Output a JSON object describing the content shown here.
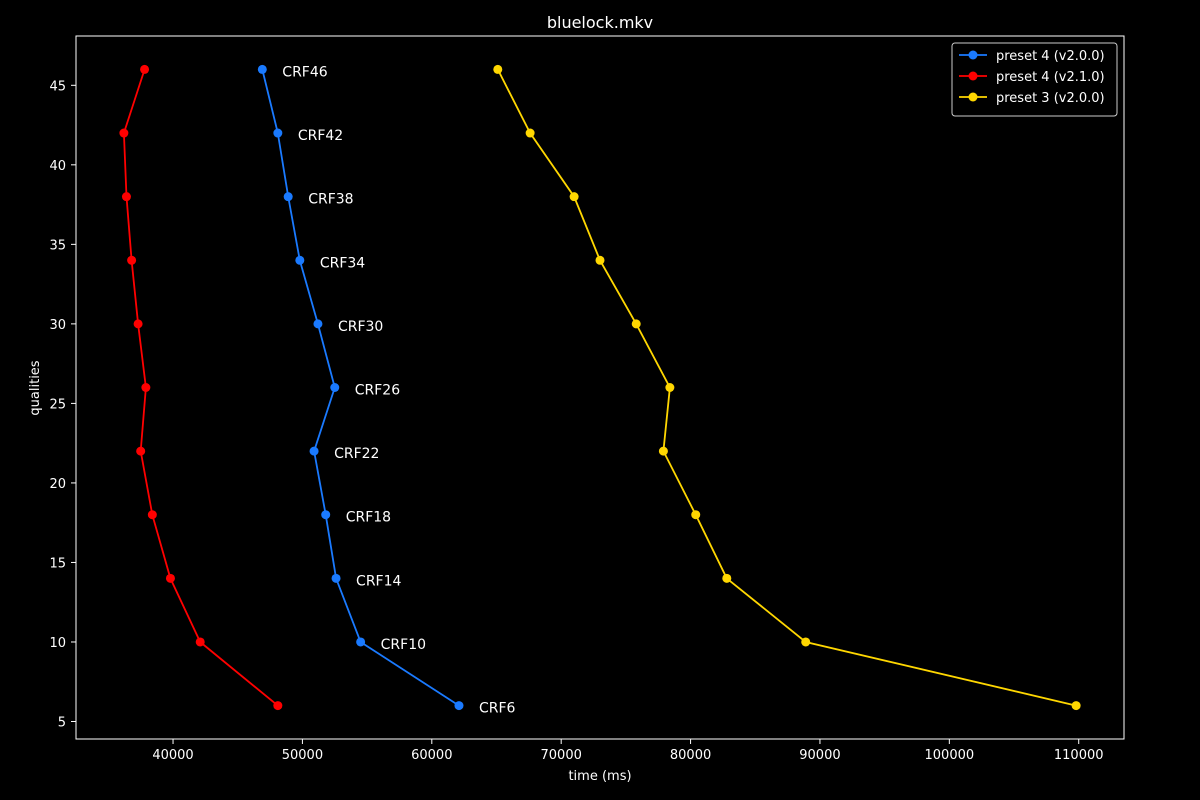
{
  "chart_data": {
    "type": "line",
    "title": "bluelock.mkv",
    "xlabel": "time (ms)",
    "ylabel": "qualities",
    "xlim": [
      32500,
      113500
    ],
    "ylim": [
      3.9,
      48.1
    ],
    "xticks": [
      40000,
      50000,
      60000,
      70000,
      80000,
      90000,
      100000,
      110000
    ],
    "yticks": [
      5,
      10,
      15,
      20,
      25,
      30,
      35,
      40,
      45
    ],
    "grid": false,
    "legend_position": "top-right",
    "series": [
      {
        "name": "preset 4 (v2.0.0)",
        "color": "#1a7aff",
        "points": [
          {
            "x": 46900,
            "y": 46
          },
          {
            "x": 48100,
            "y": 42
          },
          {
            "x": 48900,
            "y": 38
          },
          {
            "x": 49800,
            "y": 34
          },
          {
            "x": 51200,
            "y": 30
          },
          {
            "x": 52500,
            "y": 26
          },
          {
            "x": 50900,
            "y": 22
          },
          {
            "x": 51800,
            "y": 18
          },
          {
            "x": 52600,
            "y": 14
          },
          {
            "x": 54500,
            "y": 10
          },
          {
            "x": 62100,
            "y": 6
          }
        ],
        "labels": [
          "CRF46",
          "CRF42",
          "CRF38",
          "CRF34",
          "CRF30",
          "CRF26",
          "CRF22",
          "CRF18",
          "CRF14",
          "CRF10",
          "CRF6"
        ]
      },
      {
        "name": "preset 4 (v2.1.0)",
        "color": "#ff0000",
        "points": [
          {
            "x": 37800,
            "y": 46
          },
          {
            "x": 36200,
            "y": 42
          },
          {
            "x": 36400,
            "y": 38
          },
          {
            "x": 36800,
            "y": 34
          },
          {
            "x": 37300,
            "y": 30
          },
          {
            "x": 37900,
            "y": 26
          },
          {
            "x": 37500,
            "y": 22
          },
          {
            "x": 38400,
            "y": 18
          },
          {
            "x": 39800,
            "y": 14
          },
          {
            "x": 42100,
            "y": 10
          },
          {
            "x": 48100,
            "y": 6
          }
        ]
      },
      {
        "name": "preset 3 (v2.0.0)",
        "color": "#ffd700",
        "points": [
          {
            "x": 65100,
            "y": 46
          },
          {
            "x": 67600,
            "y": 42
          },
          {
            "x": 71000,
            "y": 38
          },
          {
            "x": 73000,
            "y": 34
          },
          {
            "x": 75800,
            "y": 30
          },
          {
            "x": 78400,
            "y": 26
          },
          {
            "x": 77900,
            "y": 22
          },
          {
            "x": 80400,
            "y": 18
          },
          {
            "x": 82800,
            "y": 14
          },
          {
            "x": 88900,
            "y": 10
          },
          {
            "x": 109800,
            "y": 6
          }
        ]
      }
    ]
  }
}
